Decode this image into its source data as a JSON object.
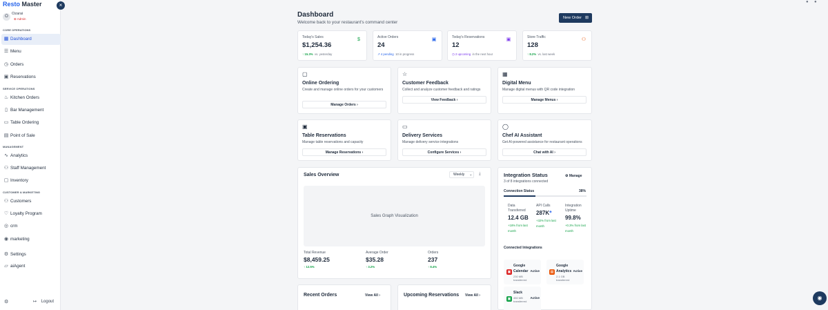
{
  "brand": {
    "name_part1": "Resto",
    "name_part2": "Master"
  },
  "user": {
    "initial": "O",
    "name": "Ozarai",
    "role": "Admin"
  },
  "sidebar": {
    "core_label": "CORE OPERATIONS",
    "service_label": "SERVICE OPERATIONS",
    "management_label": "MANAGEMENT",
    "customer_label": "CUSTOMER & MARKETING",
    "items": [
      {
        "label": "Dashboard",
        "icon": "dashboard-icon"
      },
      {
        "label": "Menu",
        "icon": "menu-icon"
      },
      {
        "label": "Orders",
        "icon": "orders-icon"
      },
      {
        "label": "Reservations",
        "icon": "calendar-icon"
      },
      {
        "label": "Kitchen Orders",
        "icon": "chef-hat-icon"
      },
      {
        "label": "Bar Management",
        "icon": "bar-icon"
      },
      {
        "label": "Table Ordering",
        "icon": "table-icon"
      },
      {
        "label": "Point of Sale",
        "icon": "pos-icon"
      },
      {
        "label": "Analytics",
        "icon": "analytics-icon"
      },
      {
        "label": "Staff Management",
        "icon": "staff-icon"
      },
      {
        "label": "Inventory",
        "icon": "inventory-icon"
      },
      {
        "label": "Customers",
        "icon": "customers-icon"
      },
      {
        "label": "Loyalty Program",
        "icon": "loyalty-icon"
      },
      {
        "label": "crm",
        "icon": "crm-icon"
      },
      {
        "label": "marketing",
        "icon": "marketing-icon"
      },
      {
        "label": "Settings",
        "icon": "gear-icon"
      },
      {
        "label": "aiAgent",
        "icon": "ai-agent-icon"
      }
    ],
    "logout": "Logout"
  },
  "header": {
    "title": "Dashboard",
    "subtitle": "Welcome back to your restaurant's command center",
    "new_order": "New Order"
  },
  "stats": [
    {
      "title": "Today's Sales",
      "value": "$1,254.36",
      "badge": "15.3%",
      "note": "vs. yesterday",
      "color": "#16a34a"
    },
    {
      "title": "Active Orders",
      "value": "24",
      "badge": "4 pending",
      "note": "10 in progress",
      "color": "#2563eb"
    },
    {
      "title": "Today's Reservations",
      "value": "12",
      "badge": "2 upcoming",
      "note": "in the next hour",
      "color": "#7c3aed"
    },
    {
      "title": "Store Traffic",
      "value": "128",
      "badge": "8.2%",
      "note": "vs. last week",
      "color": "#ea580c"
    }
  ],
  "features": [
    {
      "title": "Online Ordering",
      "desc": "Create and manage online orders for your customers",
      "button": "Manage Orders"
    },
    {
      "title": "Customer Feedback",
      "desc": "Collect and analyze customer feedback and ratings",
      "button": "View Feedback"
    },
    {
      "title": "Digital Menu",
      "desc": "Manage digital menus with QR code integration",
      "button": "Manage Menus"
    },
    {
      "title": "Table Reservations",
      "desc": "Manage table reservations and capacity",
      "button": "Manage Reservations"
    },
    {
      "title": "Delivery Services",
      "desc": "Manage delivery service integrations",
      "button": "Configure Services"
    },
    {
      "title": "Chef AI Assistant",
      "desc": "Get AI-powered assistance for restaurant operations",
      "button": "Chat with AI"
    }
  ],
  "sales_overview": {
    "title": "Sales Overview",
    "period": "Weekly",
    "placeholder": "Sales Graph Visualization",
    "metrics": [
      {
        "label": "Total Revenue",
        "value": "$8,459.25",
        "change": "12.5%"
      },
      {
        "label": "Average Order",
        "value": "$35.28",
        "change": "3.2%"
      },
      {
        "label": "Orders",
        "value": "237",
        "change": "8.4%"
      }
    ]
  },
  "integration": {
    "title": "Integration Status",
    "subtitle": "3 of 8 integrations connected",
    "manage": "Manage",
    "connection_label": "Connection Status",
    "connection_pct": "38%",
    "connection_fraction": 0.38,
    "metrics": [
      {
        "label": "Data Transferred",
        "value": "12.4 GB",
        "change": "+18% from last month"
      },
      {
        "label": "API Calls",
        "value": "287K",
        "change": "+32% from last month"
      },
      {
        "label": "Integration Uptime",
        "value": "99.8%",
        "change": "+0.3% from last month"
      }
    ],
    "connected_label": "Connected Integrations",
    "items": [
      {
        "name": "Google Calendar",
        "detail": "230 MB transferred",
        "status": "Active",
        "color": "#dc2626"
      },
      {
        "name": "Google Analytics",
        "detail": "2.1 GB transferred",
        "status": "Active",
        "color": "#ea580c"
      },
      {
        "name": "Slack",
        "detail": "450 MB transferred",
        "status": "Active",
        "color": "#16a34a"
      }
    ]
  },
  "recent_orders": {
    "title": "Recent Orders",
    "view_all": "View All"
  },
  "upcoming_reservations": {
    "title": "Upcoming Reservations",
    "view_all": "View All"
  }
}
